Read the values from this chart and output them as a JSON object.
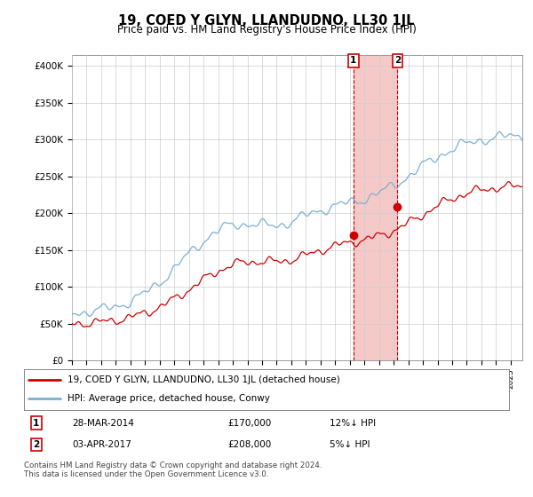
{
  "title": "19, COED Y GLYN, LLANDUDNO, LL30 1JL",
  "subtitle": "Price paid vs. HM Land Registry's House Price Index (HPI)",
  "ylabel_ticks": [
    "£0",
    "£50K",
    "£100K",
    "£150K",
    "£200K",
    "£250K",
    "£300K",
    "£350K",
    "£400K"
  ],
  "ytick_values": [
    0,
    50000,
    100000,
    150000,
    200000,
    250000,
    300000,
    350000,
    400000
  ],
  "ylim": [
    0,
    415000
  ],
  "xlim_start": 1995.0,
  "xlim_end": 2025.8,
  "transaction1": {
    "label": "1",
    "date": "28-MAR-2014",
    "price": 170000,
    "year": 2014.24,
    "pct": "12%↓ HPI"
  },
  "transaction2": {
    "label": "2",
    "date": "03-APR-2017",
    "price": 208000,
    "year": 2017.26,
    "pct": "5%↓ HPI"
  },
  "red_line_color": "#cc0000",
  "blue_line_color": "#7ab0d4",
  "shade_color": "#f5c0c0",
  "marker_box_color": "#cc0000",
  "grid_color": "#cccccc",
  "legend_label_red": "19, COED Y GLYN, LLANDUDNO, LL30 1JL (detached house)",
  "legend_label_blue": "HPI: Average price, detached house, Conwy",
  "footer": "Contains HM Land Registry data © Crown copyright and database right 2024.\nThis data is licensed under the Open Government Licence v3.0.",
  "background_color": "#ffffff"
}
